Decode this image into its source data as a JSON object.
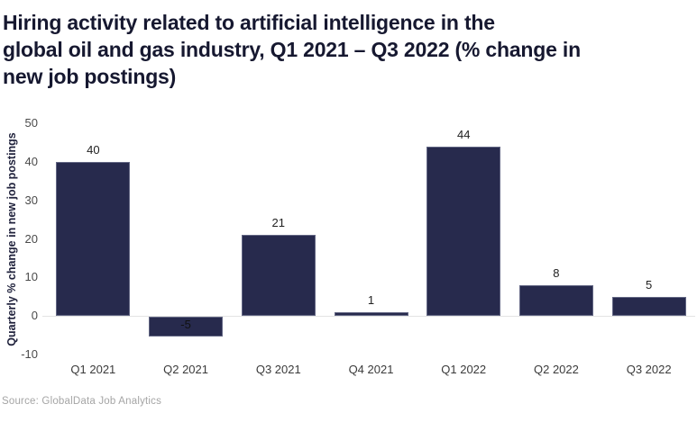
{
  "title_lines": {
    "line1": "Hiring activity related to artificial intelligence in the",
    "line2": "global oil and gas industry, Q1 2021 – Q3 2022 (% change in",
    "line3": "new job postings)"
  },
  "source_note": "Source: GlobalData Job Analytics",
  "colors": {
    "bar": "#272a4d",
    "title": "#161830",
    "axis_tick": "#4a4a4a",
    "x_tick": "#3a3a3a",
    "value_label": "#212121",
    "zero_line": "#e3e3e3",
    "source": "#a5a5a5",
    "background": "#ffffff"
  },
  "chart_data": {
    "type": "bar",
    "title": "Hiring activity related to artificial intelligence in the global oil and gas industry, Q1 2021 – Q3 2022 (% change in new job postings)",
    "categories": [
      "Q1 2021",
      "Q2 2021",
      "Q3 2021",
      "Q4 2021",
      "Q1 2022",
      "Q2 2022",
      "Q3 2022"
    ],
    "values": [
      40,
      -5,
      21,
      1,
      44,
      8,
      5
    ],
    "value_labels": [
      "40",
      "-5",
      "21",
      "1",
      "44",
      "8",
      "5"
    ],
    "xlabel": "",
    "ylabel": "Quarterly % change in new job postings",
    "ylim": [
      -10,
      50
    ],
    "yticks": [
      50,
      40,
      30,
      20,
      10,
      0,
      -10
    ],
    "grid": false,
    "legend": "none",
    "bar_color": "#272a4d"
  }
}
